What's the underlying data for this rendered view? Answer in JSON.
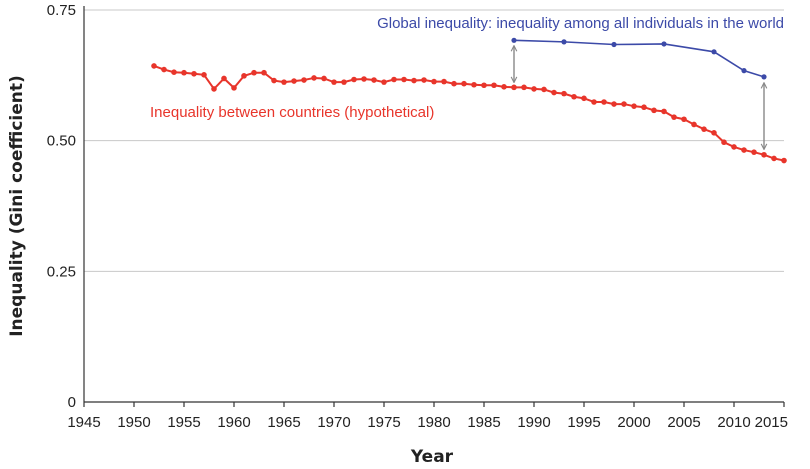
{
  "chart_data": {
    "type": "line",
    "title": "",
    "xlabel": "Year",
    "ylabel": "Inequality (Gini coefficient)",
    "xlim": [
      1945,
      2015
    ],
    "ylim": [
      0,
      0.75
    ],
    "x_ticks": [
      1945,
      1950,
      1955,
      1960,
      1965,
      1970,
      1975,
      1980,
      1985,
      1990,
      1995,
      2000,
      2005,
      2010,
      2015
    ],
    "y_ticks": [
      0,
      0.25,
      0.5,
      0.75
    ],
    "y_tick_labels": [
      "0",
      "0.25",
      "0.50",
      "0.75"
    ],
    "grid": "horizontal",
    "series": [
      {
        "name": "Inequality between countries (hypothetical)",
        "color": "#e8352b",
        "points": [
          [
            1952,
            0.643
          ],
          [
            1953,
            0.636
          ],
          [
            1954,
            0.631
          ],
          [
            1955,
            0.63
          ],
          [
            1956,
            0.628
          ],
          [
            1957,
            0.626
          ],
          [
            1958,
            0.599
          ],
          [
            1959,
            0.619
          ],
          [
            1960,
            0.601
          ],
          [
            1961,
            0.624
          ],
          [
            1962,
            0.63
          ],
          [
            1963,
            0.63
          ],
          [
            1964,
            0.615
          ],
          [
            1965,
            0.612
          ],
          [
            1966,
            0.614
          ],
          [
            1967,
            0.616
          ],
          [
            1968,
            0.62
          ],
          [
            1969,
            0.619
          ],
          [
            1970,
            0.612
          ],
          [
            1971,
            0.612
          ],
          [
            1972,
            0.617
          ],
          [
            1973,
            0.618
          ],
          [
            1974,
            0.616
          ],
          [
            1975,
            0.612
          ],
          [
            1976,
            0.617
          ],
          [
            1977,
            0.617
          ],
          [
            1978,
            0.615
          ],
          [
            1979,
            0.616
          ],
          [
            1980,
            0.613
          ],
          [
            1981,
            0.613
          ],
          [
            1982,
            0.609
          ],
          [
            1983,
            0.609
          ],
          [
            1984,
            0.607
          ],
          [
            1985,
            0.606
          ],
          [
            1986,
            0.606
          ],
          [
            1987,
            0.603
          ],
          [
            1988,
            0.602
          ],
          [
            1989,
            0.602
          ],
          [
            1990,
            0.599
          ],
          [
            1991,
            0.598
          ],
          [
            1992,
            0.592
          ],
          [
            1993,
            0.59
          ],
          [
            1994,
            0.584
          ],
          [
            1995,
            0.581
          ],
          [
            1996,
            0.574
          ],
          [
            1997,
            0.574
          ],
          [
            1998,
            0.57
          ],
          [
            1999,
            0.57
          ],
          [
            2000,
            0.566
          ],
          [
            2001,
            0.564
          ],
          [
            2002,
            0.558
          ],
          [
            2003,
            0.556
          ],
          [
            2004,
            0.545
          ],
          [
            2005,
            0.541
          ],
          [
            2006,
            0.531
          ],
          [
            2007,
            0.522
          ],
          [
            2008,
            0.515
          ],
          [
            2009,
            0.497
          ],
          [
            2010,
            0.488
          ],
          [
            2011,
            0.482
          ],
          [
            2012,
            0.478
          ],
          [
            2013,
            0.473
          ],
          [
            2014,
            0.466
          ],
          [
            2015,
            0.462
          ]
        ]
      },
      {
        "name": "Global inequality: inequality among all individuals in the world",
        "color": "#3c4aa8",
        "points": [
          [
            1988,
            0.692
          ],
          [
            1993,
            0.689
          ],
          [
            1998,
            0.684
          ],
          [
            2003,
            0.685
          ],
          [
            2008,
            0.67
          ],
          [
            2011,
            0.634
          ],
          [
            2013,
            0.622
          ]
        ]
      }
    ],
    "annotations": [
      {
        "type": "double-arrow",
        "x": 1988,
        "y_from": 0.603,
        "y_to": 0.69
      },
      {
        "type": "double-arrow",
        "x": 2013,
        "y_from": 0.475,
        "y_to": 0.619
      }
    ]
  }
}
